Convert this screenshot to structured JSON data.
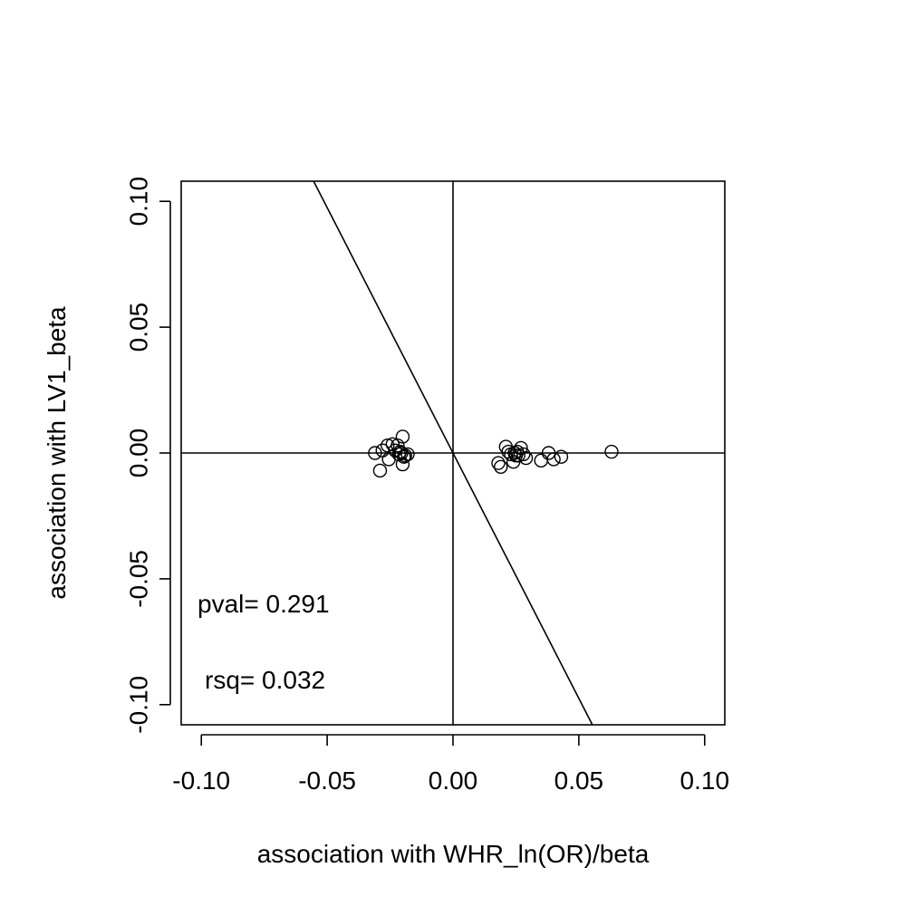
{
  "chart_data": {
    "type": "scatter",
    "title": "",
    "xlabel": "association with WHR_ln(OR)/beta",
    "ylabel": "association with LV1_beta",
    "xlim": [
      -0.108,
      0.108
    ],
    "ylim": [
      -0.108,
      0.108
    ],
    "x_ticks": [
      -0.1,
      -0.05,
      0.0,
      0.05,
      0.1
    ],
    "x_tick_labels": [
      "-0.10",
      "-0.05",
      "0.00",
      "0.05",
      "0.10"
    ],
    "y_ticks": [
      -0.1,
      -0.05,
      0.0,
      0.05,
      0.1
    ],
    "y_tick_labels": [
      "-0.10",
      "-0.05",
      "0.00",
      "0.05",
      "0.10"
    ],
    "grid": false,
    "reference_lines": {
      "x": 0,
      "y": 0
    },
    "fit_line": {
      "intercept": 0,
      "slope": -1.95
    },
    "annotations": [
      {
        "text": "pval= 0.291"
      },
      {
        "text": "rsq= 0.032"
      }
    ],
    "points": [
      {
        "x": -0.031,
        "y": 0.0
      },
      {
        "x": -0.029,
        "y": -0.007
      },
      {
        "x": -0.028,
        "y": 0.001
      },
      {
        "x": -0.026,
        "y": 0.003
      },
      {
        "x": -0.0255,
        "y": -0.0025
      },
      {
        "x": -0.024,
        "y": 0.0035
      },
      {
        "x": -0.023,
        "y": 0.001
      },
      {
        "x": -0.022,
        "y": 0.003
      },
      {
        "x": -0.0215,
        "y": -0.0005
      },
      {
        "x": -0.021,
        "y": 0.0005
      },
      {
        "x": -0.0205,
        "y": 0.0
      },
      {
        "x": -0.02,
        "y": -0.0045
      },
      {
        "x": -0.02,
        "y": 0.0065
      },
      {
        "x": -0.0195,
        "y": -0.0015
      },
      {
        "x": -0.019,
        "y": -0.001
      },
      {
        "x": -0.018,
        "y": -0.0005
      },
      {
        "x": 0.018,
        "y": -0.004
      },
      {
        "x": 0.019,
        "y": -0.0055
      },
      {
        "x": 0.021,
        "y": 0.0025
      },
      {
        "x": 0.022,
        "y": 0.0005
      },
      {
        "x": 0.023,
        "y": -0.0005
      },
      {
        "x": 0.024,
        "y": -0.0035
      },
      {
        "x": 0.0245,
        "y": 0.0
      },
      {
        "x": 0.025,
        "y": -0.001
      },
      {
        "x": 0.0255,
        "y": 0.0005
      },
      {
        "x": 0.026,
        "y": -0.001
      },
      {
        "x": 0.027,
        "y": 0.002
      },
      {
        "x": 0.028,
        "y": -0.0005
      },
      {
        "x": 0.029,
        "y": -0.002
      },
      {
        "x": 0.035,
        "y": -0.003
      },
      {
        "x": 0.038,
        "y": 0.0
      },
      {
        "x": 0.04,
        "y": -0.0025
      },
      {
        "x": 0.043,
        "y": -0.0015
      },
      {
        "x": 0.063,
        "y": 0.0005
      }
    ]
  }
}
